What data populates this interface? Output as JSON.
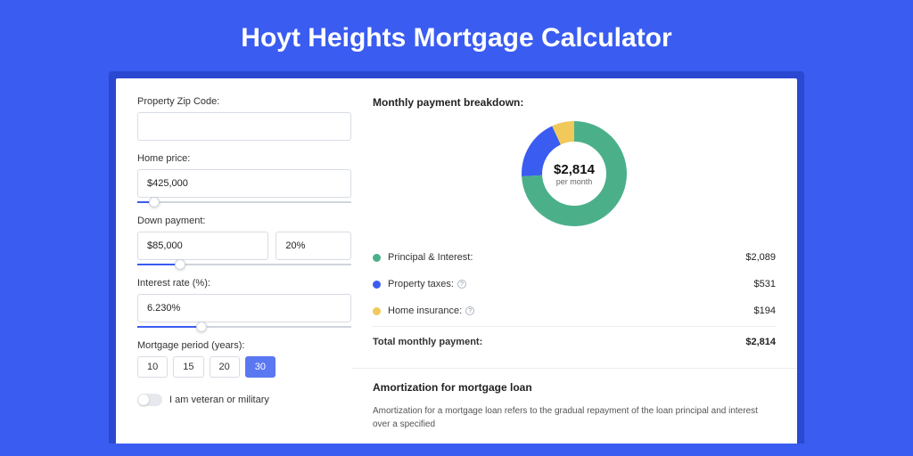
{
  "title": "Hoyt Heights Mortgage Calculator",
  "colors": {
    "page_bg": "#3a5cf0",
    "card_shadow": "#2a48d0",
    "card_bg": "#ffffff",
    "accent": "#3a5cf0",
    "principal": "#4bb08a",
    "taxes": "#3a5cf0",
    "insurance": "#f0c95a",
    "border": "#d8dce3",
    "text": "#333333"
  },
  "form": {
    "zip_label": "Property Zip Code:",
    "zip_value": "",
    "home_price_label": "Home price:",
    "home_price_value": "$425,000",
    "home_price_slider_pct": 8,
    "down_payment_label": "Down payment:",
    "down_payment_value": "$85,000",
    "down_payment_pct_value": "20%",
    "down_payment_slider_pct": 20,
    "interest_label": "Interest rate (%):",
    "interest_value": "6.230%",
    "interest_slider_pct": 30,
    "period_label": "Mortgage period (years):",
    "periods": [
      "10",
      "15",
      "20",
      "30"
    ],
    "period_selected": "30",
    "veteran_label": "I am veteran or military",
    "veteran_on": false
  },
  "breakdown": {
    "title": "Monthly payment breakdown:",
    "donut": {
      "amount": "$2,814",
      "sub": "per month",
      "slices": [
        {
          "label": "principal",
          "color": "#4bb08a",
          "value": 2089,
          "pct": 74.2
        },
        {
          "label": "taxes",
          "color": "#3a5cf0",
          "value": 531,
          "pct": 18.9
        },
        {
          "label": "insurance",
          "color": "#f0c95a",
          "value": 194,
          "pct": 6.9
        }
      ]
    },
    "rows": [
      {
        "label": "Principal & Interest:",
        "value": "$2,089",
        "color": "#4bb08a",
        "info": false
      },
      {
        "label": "Property taxes:",
        "value": "$531",
        "color": "#3a5cf0",
        "info": true
      },
      {
        "label": "Home insurance:",
        "value": "$194",
        "color": "#f0c95a",
        "info": true
      }
    ],
    "total_label": "Total monthly payment:",
    "total_value": "$2,814"
  },
  "amortization": {
    "title": "Amortization for mortgage loan",
    "text": "Amortization for a mortgage loan refers to the gradual repayment of the loan principal and interest over a specified"
  }
}
